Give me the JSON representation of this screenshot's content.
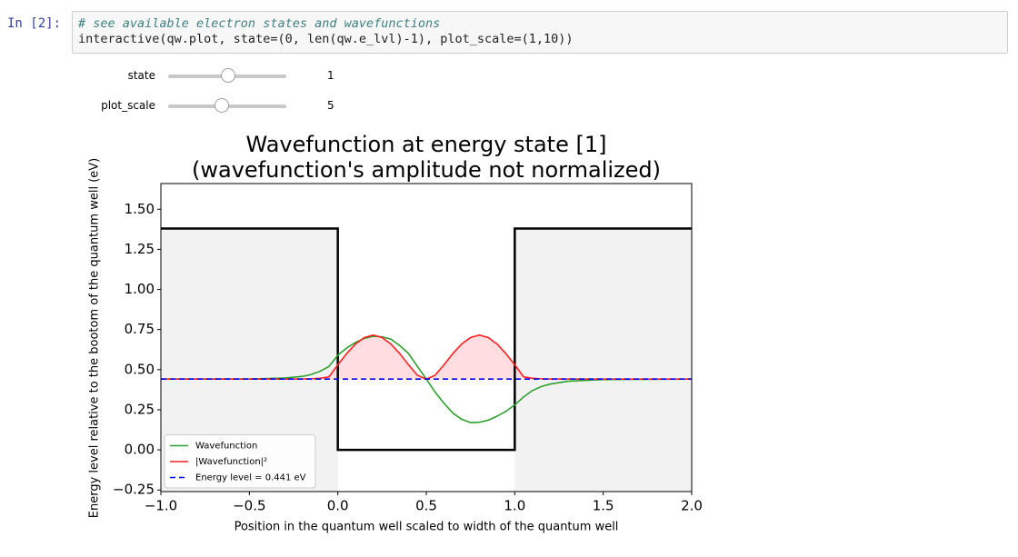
{
  "notebook": {
    "prompt": "In [2]:",
    "code": [
      "# see available electron states and wavefunctions",
      "interactive(qw.plot, state=(0, len(qw.e_lvl)-1), plot_scale=(1,10))"
    ]
  },
  "widgets": [
    {
      "label": "state",
      "value": 1
    },
    {
      "label": "plot_scale",
      "value": 5
    }
  ],
  "chart_data": {
    "type": "line",
    "title": [
      "Wavefunction at energy state [1]",
      "(wavefunction's amplitude not normalized)"
    ],
    "xlabel": "Position in the quantum well scaled to width of the quantum well",
    "ylabel": "Energy level relative to the bootom of the quantum well (eV)",
    "xlim": [
      -1.0,
      2.0
    ],
    "ylim": [
      -0.26,
      1.66
    ],
    "xticks": [
      {
        "value": -1.0,
        "label": "−1.0"
      },
      {
        "value": -0.5,
        "label": "−0.5"
      },
      {
        "value": 0.0,
        "label": "0.0"
      },
      {
        "value": 0.5,
        "label": "0.5"
      },
      {
        "value": 1.0,
        "label": "1.0"
      },
      {
        "value": 1.5,
        "label": "1.5"
      },
      {
        "value": 2.0,
        "label": "2.0"
      }
    ],
    "yticks": [
      {
        "value": -0.25,
        "label": "−0.25"
      },
      {
        "value": 0.0,
        "label": "0.00"
      },
      {
        "value": 0.25,
        "label": "0.25"
      },
      {
        "value": 0.5,
        "label": "0.50"
      },
      {
        "value": 0.75,
        "label": "0.75"
      },
      {
        "value": 1.0,
        "label": "1.00"
      },
      {
        "value": 1.25,
        "label": "1.25"
      },
      {
        "value": 1.5,
        "label": "1.50"
      }
    ],
    "legend": "lower left",
    "series": [
      {
        "color": "#000000",
        "fill": "#f2f2f2",
        "x": [
          -1,
          0,
          0,
          1,
          1,
          2
        ],
        "values": [
          1.38,
          1.38,
          0,
          0,
          1.38,
          1.38
        ]
      },
      {
        "name": "Wavefunction",
        "color": "#2ca02c",
        "x": [
          -1,
          -0.5,
          -0.3,
          -0.2,
          -0.15,
          -0.1,
          -0.05,
          0,
          0.05,
          0.1,
          0.15,
          0.2,
          0.25,
          0.3,
          0.35,
          0.4,
          0.45,
          0.5,
          0.55,
          0.6,
          0.65,
          0.7,
          0.75,
          0.8,
          0.85,
          0.9,
          0.95,
          1.0,
          1.05,
          1.1,
          1.15,
          1.2,
          1.3,
          1.5,
          2.0
        ],
        "values": [
          0.441,
          0.442,
          0.448,
          0.458,
          0.47,
          0.49,
          0.52,
          0.59,
          0.635,
          0.67,
          0.695,
          0.708,
          0.705,
          0.69,
          0.65,
          0.6,
          0.52,
          0.441,
          0.36,
          0.29,
          0.23,
          0.19,
          0.17,
          0.172,
          0.185,
          0.21,
          0.24,
          0.28,
          0.33,
          0.37,
          0.395,
          0.41,
          0.428,
          0.438,
          0.441
        ]
      },
      {
        "name": "|Wavefunction|²",
        "color": "#ff2020",
        "fill": "#ffdde0",
        "x": [
          -1,
          -0.5,
          -0.3,
          -0.2,
          -0.15,
          -0.1,
          -0.05,
          0,
          0.05,
          0.1,
          0.15,
          0.2,
          0.25,
          0.3,
          0.35,
          0.4,
          0.45,
          0.5,
          0.55,
          0.6,
          0.65,
          0.7,
          0.75,
          0.8,
          0.85,
          0.9,
          0.95,
          1.0,
          1.05,
          1.1,
          1.15,
          1.2,
          1.3,
          1.5,
          2.0
        ],
        "values": [
          0.441,
          0.441,
          0.441,
          0.442,
          0.443,
          0.446,
          0.455,
          0.53,
          0.6,
          0.66,
          0.7,
          0.716,
          0.7,
          0.66,
          0.6,
          0.53,
          0.465,
          0.441,
          0.465,
          0.53,
          0.6,
          0.66,
          0.7,
          0.716,
          0.7,
          0.66,
          0.6,
          0.53,
          0.455,
          0.446,
          0.443,
          0.442,
          0.441,
          0.441,
          0.441
        ]
      },
      {
        "name": "Energy level = 0.441 eV",
        "color": "#0000ff",
        "dashed": true,
        "x": [
          -1,
          2
        ],
        "values": [
          0.441,
          0.441
        ]
      }
    ]
  }
}
